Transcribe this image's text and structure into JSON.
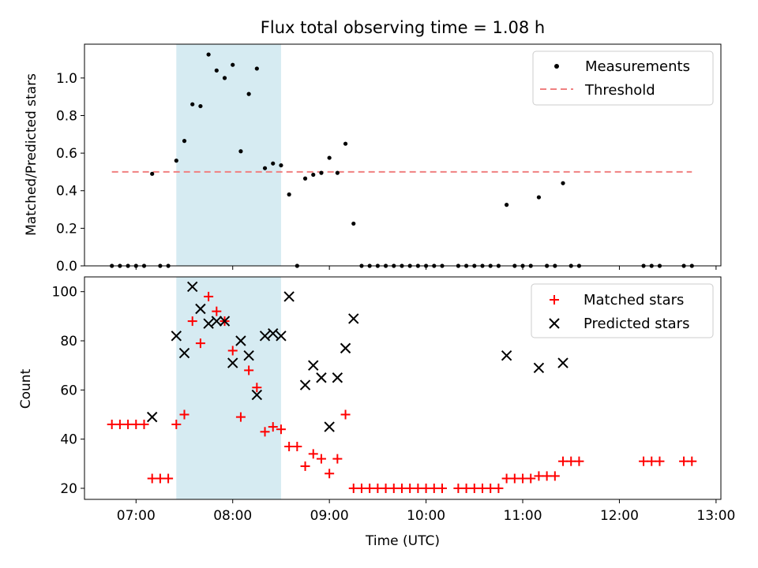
{
  "chart_data": [
    {
      "type": "scatter",
      "title": "Flux total observing time = 1.08 h",
      "xlabel": "",
      "ylabel": "Matched/Predicted stars",
      "xlim": [
        "06:28",
        "13:03"
      ],
      "ylim": [
        0,
        1.18
      ],
      "yticks": [
        0.0,
        0.2,
        0.4,
        0.6,
        0.8,
        1.0
      ],
      "yticklabels": [
        "0.0",
        "0.2",
        "0.4",
        "0.6",
        "0.8",
        "1.0"
      ],
      "shaded_interval": [
        "07:25",
        "08:30"
      ],
      "legend_placement": "top-right",
      "legend": [
        "Measurements",
        "Threshold"
      ],
      "threshold": {
        "x": [
          "06:45",
          "12:45"
        ],
        "y": 0.5,
        "color": "#f08080"
      },
      "series": [
        {
          "name": "Measurements",
          "color": "#000000",
          "points": [
            [
              "06:45",
              0
            ],
            [
              "06:50",
              0
            ],
            [
              "06:55",
              0
            ],
            [
              "07:00",
              0
            ],
            [
              "07:05",
              0
            ],
            [
              "07:10",
              0.49
            ],
            [
              "07:15",
              0
            ],
            [
              "07:20",
              0
            ],
            [
              "07:25",
              0.56
            ],
            [
              "07:30",
              0.665
            ],
            [
              "07:35",
              0.86
            ],
            [
              "07:40",
              0.85
            ],
            [
              "07:45",
              1.125
            ],
            [
              "07:50",
              1.04
            ],
            [
              "07:55",
              1.0
            ],
            [
              "08:00",
              1.07
            ],
            [
              "08:05",
              0.61
            ],
            [
              "08:10",
              0.915
            ],
            [
              "08:15",
              1.05
            ],
            [
              "08:20",
              0.52
            ],
            [
              "08:25",
              0.545
            ],
            [
              "08:30",
              0.535
            ],
            [
              "08:35",
              0.38
            ],
            [
              "08:40",
              0
            ],
            [
              "08:45",
              0.465
            ],
            [
              "08:50",
              0.485
            ],
            [
              "08:55",
              0.495
            ],
            [
              "09:00",
              0.575
            ],
            [
              "09:05",
              0.495
            ],
            [
              "09:10",
              0.65
            ],
            [
              "09:15",
              0.225
            ],
            [
              "09:20",
              0
            ],
            [
              "09:25",
              0
            ],
            [
              "09:30",
              0
            ],
            [
              "09:35",
              0
            ],
            [
              "09:40",
              0
            ],
            [
              "09:45",
              0
            ],
            [
              "09:50",
              0
            ],
            [
              "09:55",
              0
            ],
            [
              "10:00",
              0
            ],
            [
              "10:05",
              0
            ],
            [
              "10:10",
              0
            ],
            [
              "10:20",
              0
            ],
            [
              "10:25",
              0
            ],
            [
              "10:30",
              0
            ],
            [
              "10:35",
              0
            ],
            [
              "10:40",
              0
            ],
            [
              "10:45",
              0
            ],
            [
              "10:50",
              0.325
            ],
            [
              "10:55",
              0
            ],
            [
              "11:00",
              0
            ],
            [
              "11:05",
              0
            ],
            [
              "11:10",
              0.365
            ],
            [
              "11:15",
              0
            ],
            [
              "11:20",
              0
            ],
            [
              "11:25",
              0.44
            ],
            [
              "11:30",
              0
            ],
            [
              "11:35",
              0
            ],
            [
              "12:15",
              0
            ],
            [
              "12:20",
              0
            ],
            [
              "12:25",
              0
            ],
            [
              "12:40",
              0
            ],
            [
              "12:45",
              0
            ]
          ]
        }
      ]
    },
    {
      "type": "scatter",
      "title": "",
      "xlabel": "Time (UTC)",
      "ylabel": "Count",
      "xlim": [
        "06:28",
        "13:03"
      ],
      "xticks": [
        "07:00",
        "08:00",
        "09:00",
        "10:00",
        "11:00",
        "12:00",
        "13:00"
      ],
      "ylim": [
        15.5,
        106
      ],
      "yticks": [
        20,
        40,
        60,
        80,
        100
      ],
      "yticklabels": [
        "20",
        "40",
        "60",
        "80",
        "100"
      ],
      "shaded_interval": [
        "07:25",
        "08:30"
      ],
      "legend_placement": "top-right",
      "legend": [
        "Matched stars",
        "Predicted stars"
      ],
      "series": [
        {
          "name": "Matched stars",
          "marker": "plus",
          "color": "#ff0000",
          "points": [
            [
              "06:45",
              46
            ],
            [
              "06:50",
              46
            ],
            [
              "06:55",
              46
            ],
            [
              "07:00",
              46
            ],
            [
              "07:05",
              46
            ],
            [
              "07:10",
              24
            ],
            [
              "07:15",
              24
            ],
            [
              "07:20",
              24
            ],
            [
              "07:25",
              46
            ],
            [
              "07:30",
              50
            ],
            [
              "07:35",
              88
            ],
            [
              "07:40",
              79
            ],
            [
              "07:45",
              98
            ],
            [
              "07:50",
              92
            ],
            [
              "07:55",
              88
            ],
            [
              "08:00",
              76
            ],
            [
              "08:05",
              49
            ],
            [
              "08:10",
              68
            ],
            [
              "08:15",
              61
            ],
            [
              "08:20",
              43
            ],
            [
              "08:25",
              45
            ],
            [
              "08:30",
              44
            ],
            [
              "08:35",
              37
            ],
            [
              "08:40",
              37
            ],
            [
              "08:45",
              29
            ],
            [
              "08:50",
              34
            ],
            [
              "08:55",
              32
            ],
            [
              "09:00",
              26
            ],
            [
              "09:05",
              32
            ],
            [
              "09:10",
              50
            ],
            [
              "09:15",
              20
            ],
            [
              "09:20",
              20
            ],
            [
              "09:25",
              20
            ],
            [
              "09:30",
              20
            ],
            [
              "09:35",
              20
            ],
            [
              "09:40",
              20
            ],
            [
              "09:45",
              20
            ],
            [
              "09:50",
              20
            ],
            [
              "09:55",
              20
            ],
            [
              "10:00",
              20
            ],
            [
              "10:05",
              20
            ],
            [
              "10:10",
              20
            ],
            [
              "10:20",
              20
            ],
            [
              "10:25",
              20
            ],
            [
              "10:30",
              20
            ],
            [
              "10:35",
              20
            ],
            [
              "10:40",
              20
            ],
            [
              "10:45",
              20
            ],
            [
              "10:50",
              24
            ],
            [
              "10:55",
              24
            ],
            [
              "11:00",
              24
            ],
            [
              "11:05",
              24
            ],
            [
              "11:10",
              25
            ],
            [
              "11:15",
              25
            ],
            [
              "11:20",
              25
            ],
            [
              "11:25",
              31
            ],
            [
              "11:30",
              31
            ],
            [
              "11:35",
              31
            ],
            [
              "12:15",
              31
            ],
            [
              "12:20",
              31
            ],
            [
              "12:25",
              31
            ],
            [
              "12:40",
              31
            ],
            [
              "12:45",
              31
            ]
          ]
        },
        {
          "name": "Predicted stars",
          "marker": "x",
          "color": "#000000",
          "points": [
            [
              "07:10",
              49
            ],
            [
              "07:25",
              82
            ],
            [
              "07:30",
              75
            ],
            [
              "07:35",
              102
            ],
            [
              "07:40",
              93
            ],
            [
              "07:45",
              87
            ],
            [
              "07:50",
              88
            ],
            [
              "07:55",
              88
            ],
            [
              "08:00",
              71
            ],
            [
              "08:05",
              80
            ],
            [
              "08:10",
              74
            ],
            [
              "08:15",
              58
            ],
            [
              "08:20",
              82
            ],
            [
              "08:25",
              83
            ],
            [
              "08:30",
              82
            ],
            [
              "08:35",
              98
            ],
            [
              "08:45",
              62
            ],
            [
              "08:50",
              70
            ],
            [
              "08:55",
              65
            ],
            [
              "09:00",
              45
            ],
            [
              "09:05",
              65
            ],
            [
              "09:10",
              77
            ],
            [
              "09:15",
              89
            ],
            [
              "10:50",
              74
            ],
            [
              "11:10",
              69
            ],
            [
              "11:25",
              71
            ]
          ]
        }
      ]
    }
  ]
}
